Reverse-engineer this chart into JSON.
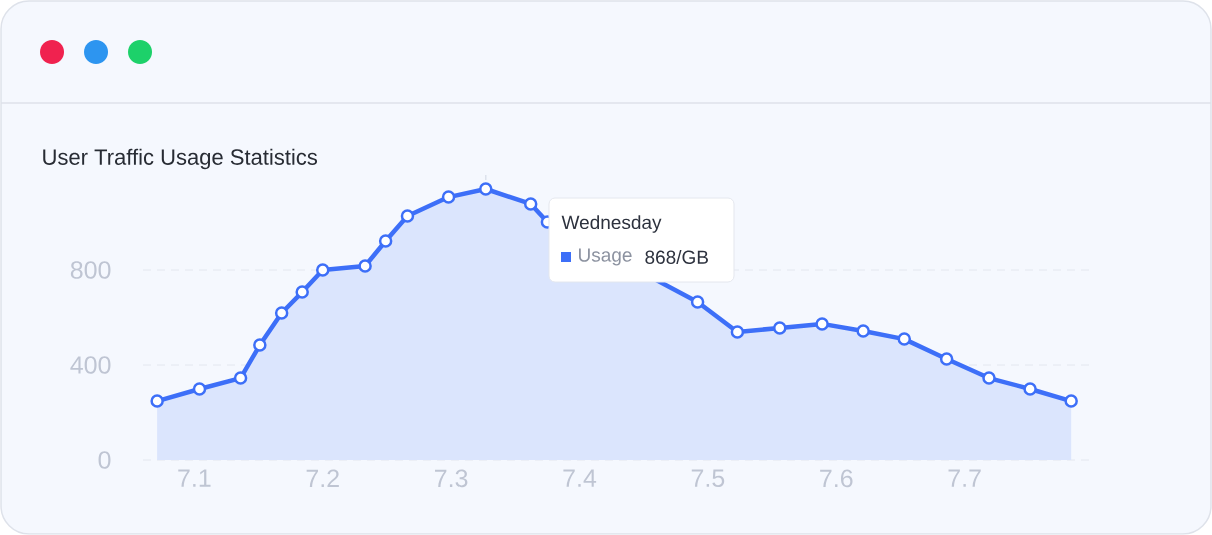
{
  "chart_data": {
    "type": "area",
    "title": "User Traffic Usage Statistics",
    "x": [
      7.071,
      7.104,
      7.136,
      7.151,
      7.168,
      7.184,
      7.2,
      7.233,
      7.249,
      7.266,
      7.298,
      7.327,
      7.362,
      7.375,
      7.492,
      7.523,
      7.556,
      7.589,
      7.621,
      7.653,
      7.686,
      7.719,
      7.751,
      7.783
    ],
    "values": [
      248,
      299,
      345,
      484,
      619,
      707,
      800,
      817,
      922,
      1027,
      1107,
      1141,
      1078,
      1002,
      665,
      539,
      556,
      573,
      543,
      509,
      425,
      345,
      299,
      248
    ],
    "color": "#3d6ff8",
    "xlim": [
      7.06,
      7.8
    ],
    "xticks": [
      7.1,
      7.2,
      7.3,
      7.4,
      7.5,
      7.6,
      7.7
    ],
    "ylim": [
      0,
      1200
    ],
    "yticks": [
      0,
      400,
      800
    ],
    "grid": "y",
    "marker": "circle",
    "line_style": "solid",
    "ref_lines": [
      {
        "axis": "x",
        "value": 7.327,
        "line_style": "dashed",
        "color": "#dde2ec"
      }
    ],
    "annotations": [
      "Wednesday",
      "Usage",
      "868/GB"
    ]
  }
}
